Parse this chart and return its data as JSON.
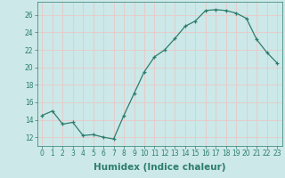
{
  "x": [
    0,
    1,
    2,
    3,
    4,
    5,
    6,
    7,
    8,
    9,
    10,
    11,
    12,
    13,
    14,
    15,
    16,
    17,
    18,
    19,
    20,
    21,
    22,
    23
  ],
  "y": [
    14.5,
    15.0,
    13.5,
    13.7,
    12.2,
    12.3,
    12.0,
    11.8,
    14.5,
    17.0,
    19.5,
    21.2,
    22.0,
    23.3,
    24.7,
    25.3,
    26.5,
    26.6,
    26.5,
    26.2,
    25.6,
    23.2,
    21.7,
    20.5
  ],
  "line_color": "#2d7d6e",
  "marker": "+",
  "xlabel": "Humidex (Indice chaleur)",
  "xlim": [
    -0.5,
    23.5
  ],
  "ylim": [
    11.0,
    27.5
  ],
  "yticks": [
    12,
    14,
    16,
    18,
    20,
    22,
    24,
    26
  ],
  "xticks": [
    0,
    1,
    2,
    3,
    4,
    5,
    6,
    7,
    8,
    9,
    10,
    11,
    12,
    13,
    14,
    15,
    16,
    17,
    18,
    19,
    20,
    21,
    22,
    23
  ],
  "bg_color": "#cce8e8",
  "grid_color": "#e8c8c8",
  "axis_color": "#2d7d6e",
  "tick_fontsize": 5.5,
  "label_fontsize": 7.5
}
